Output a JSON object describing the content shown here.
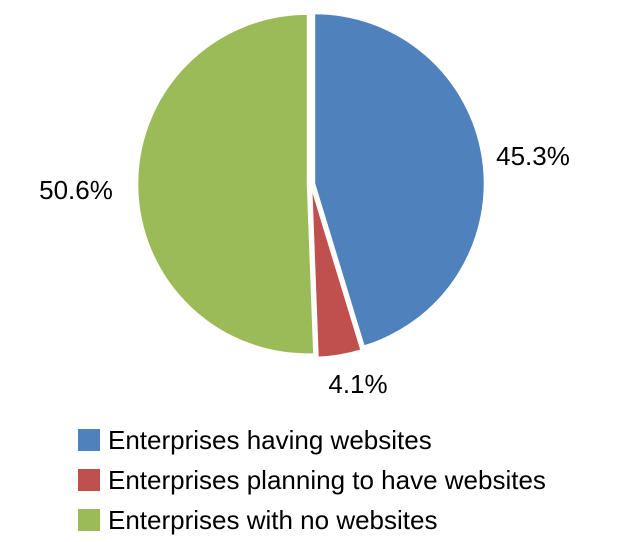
{
  "chart_data": {
    "type": "pie",
    "title": "",
    "start": "top",
    "direction": "clockwise",
    "legend_position": "bottom",
    "slices": [
      {
        "name": "Enterprises having websites",
        "value": 45.3,
        "label": "45.3%",
        "color": "#4f81bd"
      },
      {
        "name": "Enterprises planning to have websites",
        "value": 4.1,
        "label": "4.1%",
        "color": "#c0504d"
      },
      {
        "name": "Enterprises with no websites",
        "value": 50.6,
        "label": "50.6%",
        "color": "#9bbb59"
      }
    ]
  }
}
